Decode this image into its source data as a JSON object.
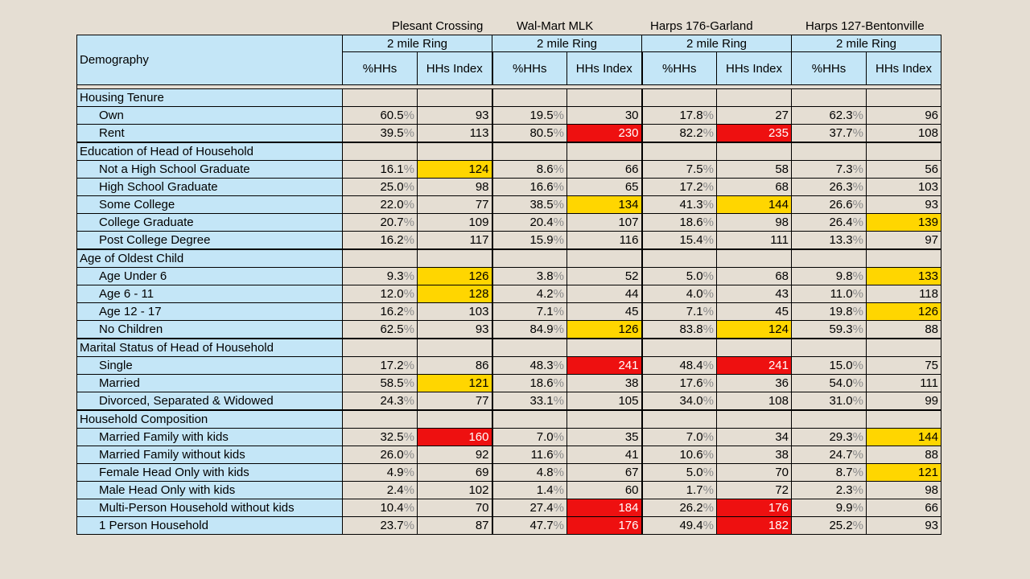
{
  "stores": [
    "Plesant Crossing",
    "Wal-Mart MLK",
    "Harps 176-Garland",
    "Harps 127-Bentonville"
  ],
  "header": {
    "title": "Demography",
    "ring_label": "2 mile Ring",
    "col_pct": "%HHs",
    "col_index": "HHs Index"
  },
  "colors": {
    "high": "#ffd600",
    "very_high": "#ee1010",
    "label_bg": "#c4e6f7"
  },
  "sections": [
    {
      "title": "Housing Tenure",
      "rows": [
        {
          "label": "Own",
          "cells": [
            [
              "60.5",
              "93",
              ""
            ],
            [
              "19.5",
              "30",
              ""
            ],
            [
              "17.8",
              "27",
              ""
            ],
            [
              "62.3",
              "96",
              ""
            ]
          ]
        },
        {
          "label": "Rent",
          "cells": [
            [
              "39.5",
              "113",
              ""
            ],
            [
              "80.5",
              "230",
              "red"
            ],
            [
              "82.2",
              "235",
              "red"
            ],
            [
              "37.7",
              "108",
              ""
            ]
          ]
        }
      ]
    },
    {
      "title": "Education of Head of Household",
      "rows": [
        {
          "label": "Not a High School Graduate",
          "cells": [
            [
              "16.1",
              "124",
              "yellow"
            ],
            [
              "8.6",
              "66",
              ""
            ],
            [
              "7.5",
              "58",
              ""
            ],
            [
              "7.3",
              "56",
              ""
            ]
          ]
        },
        {
          "label": "High School Graduate",
          "cells": [
            [
              "25.0",
              "98",
              ""
            ],
            [
              "16.6",
              "65",
              ""
            ],
            [
              "17.2",
              "68",
              ""
            ],
            [
              "26.3",
              "103",
              ""
            ]
          ]
        },
        {
          "label": "Some College",
          "cells": [
            [
              "22.0",
              "77",
              ""
            ],
            [
              "38.5",
              "134",
              "yellow"
            ],
            [
              "41.3",
              "144",
              "yellow"
            ],
            [
              "26.6",
              "93",
              ""
            ]
          ]
        },
        {
          "label": "College Graduate",
          "cells": [
            [
              "20.7",
              "109",
              ""
            ],
            [
              "20.4",
              "107",
              ""
            ],
            [
              "18.6",
              "98",
              ""
            ],
            [
              "26.4",
              "139",
              "yellow"
            ]
          ]
        },
        {
          "label": "Post College Degree",
          "cells": [
            [
              "16.2",
              "117",
              ""
            ],
            [
              "15.9",
              "116",
              ""
            ],
            [
              "15.4",
              "111",
              ""
            ],
            [
              "13.3",
              "97",
              ""
            ]
          ]
        }
      ]
    },
    {
      "title": "Age of Oldest Child",
      "rows": [
        {
          "label": "Age Under 6",
          "cells": [
            [
              "9.3",
              "126",
              "yellow"
            ],
            [
              "3.8",
              "52",
              ""
            ],
            [
              "5.0",
              "68",
              ""
            ],
            [
              "9.8",
              "133",
              "yellow"
            ]
          ]
        },
        {
          "label": "Age 6 - 11",
          "cells": [
            [
              "12.0",
              "128",
              "yellow"
            ],
            [
              "4.2",
              "44",
              ""
            ],
            [
              "4.0",
              "43",
              ""
            ],
            [
              "11.0",
              "118",
              ""
            ]
          ]
        },
        {
          "label": "Age 12 - 17",
          "cells": [
            [
              "16.2",
              "103",
              ""
            ],
            [
              "7.1",
              "45",
              ""
            ],
            [
              "7.1",
              "45",
              ""
            ],
            [
              "19.8",
              "126",
              "yellow"
            ]
          ]
        },
        {
          "label": "No Children",
          "cells": [
            [
              "62.5",
              "93",
              ""
            ],
            [
              "84.9",
              "126",
              "yellow"
            ],
            [
              "83.8",
              "124",
              "yellow"
            ],
            [
              "59.3",
              "88",
              ""
            ]
          ]
        }
      ]
    },
    {
      "title": "Marital Status of Head of Household",
      "rows": [
        {
          "label": "Single",
          "cells": [
            [
              "17.2",
              "86",
              ""
            ],
            [
              "48.3",
              "241",
              "red"
            ],
            [
              "48.4",
              "241",
              "red"
            ],
            [
              "15.0",
              "75",
              ""
            ]
          ]
        },
        {
          "label": "Married",
          "cells": [
            [
              "58.5",
              "121",
              "yellow"
            ],
            [
              "18.6",
              "38",
              ""
            ],
            [
              "17.6",
              "36",
              ""
            ],
            [
              "54.0",
              "111",
              ""
            ]
          ]
        },
        {
          "label": "Divorced, Separated & Widowed",
          "cells": [
            [
              "24.3",
              "77",
              ""
            ],
            [
              "33.1",
              "105",
              ""
            ],
            [
              "34.0",
              "108",
              ""
            ],
            [
              "31.0",
              "99",
              ""
            ]
          ]
        }
      ]
    },
    {
      "title": "Household Composition",
      "rows": [
        {
          "label": "Married Family with kids",
          "cells": [
            [
              "32.5",
              "160",
              "red"
            ],
            [
              "7.0",
              "35",
              ""
            ],
            [
              "7.0",
              "34",
              ""
            ],
            [
              "29.3",
              "144",
              "yellow"
            ]
          ]
        },
        {
          "label": "Married Family without kids",
          "cells": [
            [
              "26.0",
              "92",
              ""
            ],
            [
              "11.6",
              "41",
              ""
            ],
            [
              "10.6",
              "38",
              ""
            ],
            [
              "24.7",
              "88",
              ""
            ]
          ]
        },
        {
          "label": "Female Head Only with kids",
          "cells": [
            [
              "4.9",
              "69",
              ""
            ],
            [
              "4.8",
              "67",
              ""
            ],
            [
              "5.0",
              "70",
              ""
            ],
            [
              "8.7",
              "121",
              "yellow"
            ]
          ]
        },
        {
          "label": "Male Head Only with kids",
          "cells": [
            [
              "2.4",
              "102",
              ""
            ],
            [
              "1.4",
              "60",
              ""
            ],
            [
              "1.7",
              "72",
              ""
            ],
            [
              "2.3",
              "98",
              ""
            ]
          ]
        },
        {
          "label": "Multi-Person Household without kids",
          "cells": [
            [
              "10.4",
              "70",
              ""
            ],
            [
              "27.4",
              "184",
              "red"
            ],
            [
              "26.2",
              "176",
              "red"
            ],
            [
              "9.9",
              "66",
              ""
            ]
          ]
        },
        {
          "label": "1 Person Household",
          "cells": [
            [
              "23.7",
              "87",
              ""
            ],
            [
              "47.7",
              "176",
              "red"
            ],
            [
              "49.4",
              "182",
              "red"
            ],
            [
              "25.2",
              "93",
              ""
            ]
          ]
        }
      ]
    }
  ]
}
